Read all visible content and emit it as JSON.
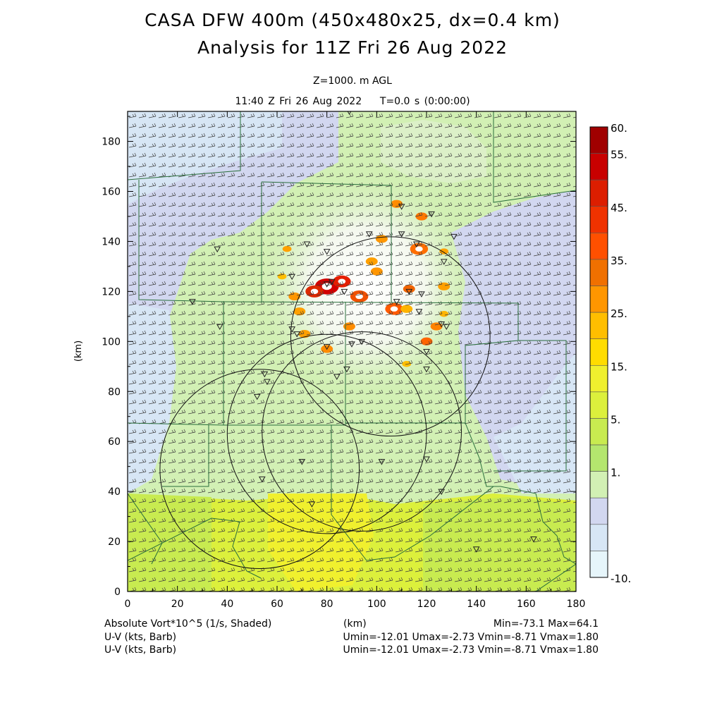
{
  "header": {
    "title": "CASA DFW 400m (450x480x25, dx=0.4 km)",
    "subtitle": "Analysis for 11Z Fri 26 Aug 2022",
    "level": "Z=1000. m AGL",
    "valid_time": "11:40 Z Fri 26 Aug 2022    T=0.0 s (0:00:00)"
  },
  "axes": {
    "x_ticks": [
      "0",
      "20",
      "40",
      "60",
      "80",
      "100",
      "120",
      "140",
      "160",
      "180"
    ],
    "y_ticks": [
      "0",
      "20",
      "40",
      "60",
      "80",
      "100",
      "120",
      "140",
      "160",
      "180"
    ],
    "x_label": "(km)",
    "y_label": "(km)",
    "x_range": [
      0,
      180
    ],
    "y_range": [
      0,
      192
    ]
  },
  "colorbar": {
    "labels": [
      "60.",
      "55.",
      "45.",
      "35.",
      "25.",
      "15.",
      "5.",
      "1.",
      "-10."
    ],
    "colors": [
      "#a00000",
      "#c80000",
      "#dc1e00",
      "#f03200",
      "#ff5000",
      "#f07000",
      "#ff9600",
      "#ffbe00",
      "#ffdc00",
      "#f0f02e",
      "#dcf03c",
      "#c8eb50",
      "#b4e66e",
      "#d2f0b4",
      "#d2d7f0",
      "#d7e6f5",
      "#e6f5fa"
    ]
  },
  "footer": {
    "field1": "Absolute Vort*10^5 (1/s, Shaded)",
    "xunit": "(km)",
    "minmax": "Min=-73.1 Max=64.1",
    "field2": "U-V (kts, Barb)",
    "stats2": "Umin=-12.01 Umax=-2.73 Vmin=-8.71 Vmax=1.80",
    "field3": "U-V (kts, Barb)",
    "stats3": "Umin=-12.01 Umax=-2.73 Vmin=-8.71 Vmax=1.80"
  },
  "map": {
    "radar_rings": [
      {
        "cx": 105.5,
        "cy": 102,
        "r": 40
      },
      {
        "cx": 80,
        "cy": 63,
        "r": 40
      },
      {
        "cx": 94,
        "cy": 64,
        "r": 40
      },
      {
        "cx": 53,
        "cy": 49,
        "r": 40
      }
    ],
    "stations": [
      [
        89,
        192
      ],
      [
        110,
        154
      ],
      [
        122,
        151
      ],
      [
        97,
        143
      ],
      [
        110,
        143
      ],
      [
        116,
        139
      ],
      [
        131,
        142
      ],
      [
        36,
        137
      ],
      [
        72,
        139
      ],
      [
        80,
        136
      ],
      [
        66,
        126
      ],
      [
        127,
        132
      ],
      [
        82,
        124
      ],
      [
        80,
        123
      ],
      [
        87,
        120
      ],
      [
        113,
        120
      ],
      [
        118,
        119
      ],
      [
        26,
        116
      ],
      [
        108,
        116
      ],
      [
        117,
        112
      ],
      [
        37,
        106
      ],
      [
        66,
        105
      ],
      [
        68,
        103
      ],
      [
        126,
        107
      ],
      [
        128,
        106
      ],
      [
        120,
        96
      ],
      [
        80,
        98
      ],
      [
        90,
        99
      ],
      [
        94,
        100
      ],
      [
        120,
        89
      ],
      [
        55,
        87
      ],
      [
        84,
        86
      ],
      [
        88,
        89
      ],
      [
        56,
        84
      ],
      [
        52,
        78
      ],
      [
        70,
        52
      ],
      [
        102,
        52
      ],
      [
        120,
        53
      ],
      [
        54,
        45
      ],
      [
        74,
        35
      ],
      [
        126,
        40
      ],
      [
        140,
        17
      ],
      [
        163,
        21
      ]
    ],
    "hot_spots": [
      [
        80,
        122,
        4,
        "#d20000"
      ],
      [
        86,
        124,
        3,
        "#e61e00"
      ],
      [
        75,
        120,
        3,
        "#dc2800"
      ],
      [
        93,
        118,
        3,
        "#f05000"
      ],
      [
        107,
        113,
        3,
        "#ff5a00"
      ],
      [
        113,
        121,
        2,
        "#f06400"
      ],
      [
        117,
        137,
        3,
        "#ff6e00"
      ],
      [
        108,
        155,
        2,
        "#ff8c00"
      ],
      [
        118,
        150,
        2,
        "#ff7800"
      ],
      [
        89,
        106,
        2,
        "#ff8c00"
      ],
      [
        120,
        100,
        2,
        "#ff6400"
      ],
      [
        124,
        106,
        2,
        "#ff8200"
      ],
      [
        71,
        103,
        2,
        "#ffa000"
      ],
      [
        80,
        97,
        2,
        "#ff8c00"
      ],
      [
        67,
        118,
        2,
        "#ff9600"
      ],
      [
        69,
        112,
        2,
        "#ffa000"
      ],
      [
        102,
        141,
        2,
        "#ff9600"
      ],
      [
        98,
        132,
        2,
        "#ffa000"
      ],
      [
        127,
        122,
        2,
        "#ffa000"
      ],
      [
        112,
        113,
        2,
        "#ffb400"
      ],
      [
        100,
        128,
        2,
        "#ff9600"
      ],
      [
        62,
        126,
        1.5,
        "#ffbe00"
      ],
      [
        127,
        111,
        1.5,
        "#ffb400"
      ],
      [
        112,
        91,
        1.5,
        "#ffbe00"
      ],
      [
        127,
        136,
        1.5,
        "#ffa000"
      ],
      [
        64,
        137,
        1.5,
        "#ffa000"
      ]
    ]
  }
}
